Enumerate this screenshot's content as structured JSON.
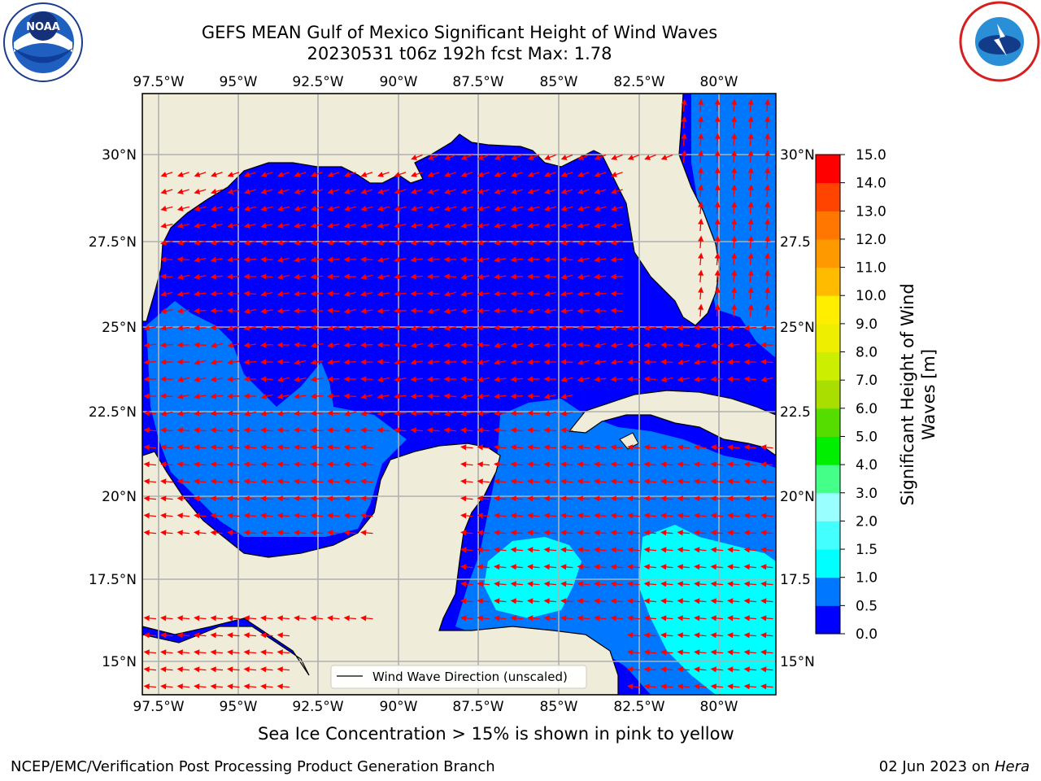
{
  "title_line1": "GEFS MEAN Gulf of Mexico Significant Height of Wind Waves",
  "title_line2": "20230531 t06z 192h fcst   Max: 1.78",
  "lon_labels": [
    "97.5°W",
    "95°W",
    "92.5°W",
    "90°W",
    "87.5°W",
    "85°W",
    "82.5°W",
    "80°W"
  ],
  "lat_labels": [
    "30°N",
    "27.5°N",
    "25°N",
    "22.5°N",
    "20°N",
    "17.5°N",
    "15°N"
  ],
  "right_lat_labels": [
    "30°N",
    "27.5",
    "25°N",
    "22.5",
    "20°N",
    "17.5",
    "15°N"
  ],
  "legend_label": "Wind Wave Direction (unscaled)",
  "colorbar": {
    "label_line1": "Significant Height of Wind",
    "label_line2": "Waves [m]",
    "ticks": [
      "0.0",
      "0.5",
      "1.0",
      "1.5",
      "2.0",
      "3.0",
      "4.0",
      "5.0",
      "6.0",
      "7.0",
      "8.0",
      "9.0",
      "10.0",
      "11.0",
      "12.0",
      "13.0",
      "14.0",
      "15.0"
    ],
    "colors": [
      "#0000ff",
      "#0077ff",
      "#00ffff",
      "#44ffff",
      "#99ffff",
      "#44ff88",
      "#00ee00",
      "#55dd00",
      "#aadd00",
      "#ccee00",
      "#eeee00",
      "#ffee00",
      "#ffbb00",
      "#ff9900",
      "#ff7700",
      "#ff4400",
      "#ff0000"
    ]
  },
  "colors": {
    "land": "#efedd9",
    "wave_0_05": "#0000ff",
    "wave_05_1": "#0077ff",
    "wave_1_15": "#00ffff",
    "arrow": "#ff0000",
    "grid": "#b0b0b0"
  },
  "subtitle": "Sea Ice Concentration > 15% is shown in pink to yellow",
  "footer_left": "NCEP/EMC/Verification Post Processing Product Generation Branch",
  "footer_date": "02 Jun 2023 on ",
  "footer_host": "Hera",
  "logos": {
    "left": "noaa-logo",
    "left_text": "NOAA",
    "right": "nws-logo"
  }
}
